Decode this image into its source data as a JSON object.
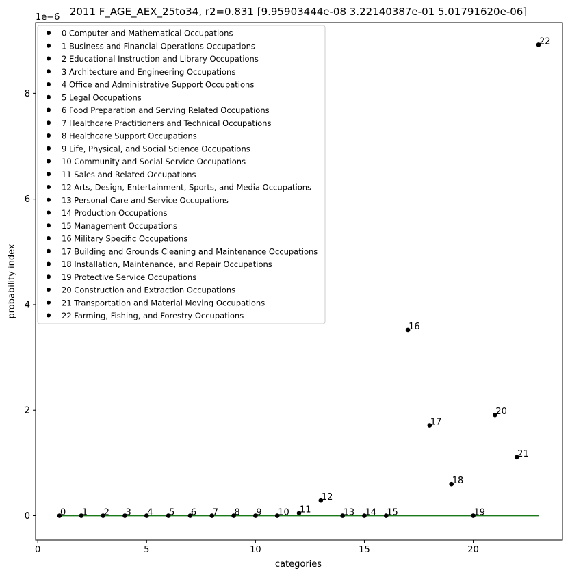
{
  "chart_data": {
    "type": "scatter",
    "title": "2011 F_AGE_AEX_25to34, r2=0.831  [9.95903444e-08 3.22140387e-01 5.01791620e-06]",
    "xlabel": "categories",
    "ylabel": "probability index",
    "y_offset_label": "1e−6",
    "xlim": [
      -0.1,
      24.1
    ],
    "ylim": [
      -0.46,
      9.34
    ],
    "x_ticks": [
      0,
      5,
      10,
      15,
      20
    ],
    "y_ticks": [
      0,
      2,
      4,
      6,
      8
    ],
    "legend_position": "upper-left",
    "point_color": "#000000",
    "fit_color": "#1a7a1a",
    "points": [
      {
        "label": "0",
        "x": 1,
        "y": 0.0
      },
      {
        "label": "1",
        "x": 2,
        "y": 0.0
      },
      {
        "label": "2",
        "x": 3,
        "y": 0.0
      },
      {
        "label": "3",
        "x": 4,
        "y": 0.0
      },
      {
        "label": "4",
        "x": 5,
        "y": 0.0
      },
      {
        "label": "5",
        "x": 6,
        "y": 0.0
      },
      {
        "label": "6",
        "x": 7,
        "y": 0.0
      },
      {
        "label": "7",
        "x": 8,
        "y": 0.0
      },
      {
        "label": "8",
        "x": 9,
        "y": 0.0
      },
      {
        "label": "9",
        "x": 10,
        "y": 0.0
      },
      {
        "label": "10",
        "x": 11,
        "y": 0.0
      },
      {
        "label": "11",
        "x": 12,
        "y": 0.05
      },
      {
        "label": "12",
        "x": 13,
        "y": 0.29
      },
      {
        "label": "13",
        "x": 14,
        "y": 0.0
      },
      {
        "label": "14",
        "x": 15,
        "y": 0.0
      },
      {
        "label": "15",
        "x": 16,
        "y": 0.0
      },
      {
        "label": "16",
        "x": 17,
        "y": 3.52
      },
      {
        "label": "17",
        "x": 18,
        "y": 1.71
      },
      {
        "label": "18",
        "x": 19,
        "y": 0.6
      },
      {
        "label": "19",
        "x": 20,
        "y": 0.0
      },
      {
        "label": "20",
        "x": 21,
        "y": 1.91
      },
      {
        "label": "21",
        "x": 22,
        "y": 1.11
      },
      {
        "label": "22",
        "x": 23,
        "y": 8.92
      }
    ],
    "fit_line": {
      "x": [
        1,
        23
      ],
      "y": [
        0.0,
        0.0
      ]
    },
    "legend": [
      "0 Computer and Mathematical Occupations",
      "1 Business and Financial Operations Occupations",
      "2 Educational Instruction and Library Occupations",
      "3 Architecture and Engineering Occupations",
      "4 Office and Administrative Support Occupations",
      "5 Legal Occupations",
      "6 Food Preparation and Serving Related Occupations",
      "7 Healthcare Practitioners and Technical Occupations",
      "8 Healthcare Support Occupations",
      "9 Life, Physical, and Social Science Occupations",
      "10 Community and Social Service Occupations",
      "11 Sales and Related Occupations",
      "12 Arts, Design, Entertainment, Sports, and Media Occupations",
      "13 Personal Care and Service Occupations",
      "14 Production Occupations",
      "15 Management Occupations",
      "16 Military Specific Occupations",
      "17 Building and Grounds Cleaning and Maintenance Occupations",
      "18 Installation, Maintenance, and Repair Occupations",
      "19 Protective Service Occupations",
      "20 Construction and Extraction Occupations",
      "21 Transportation and Material Moving Occupations",
      "22 Farming, Fishing, and Forestry Occupations"
    ]
  }
}
